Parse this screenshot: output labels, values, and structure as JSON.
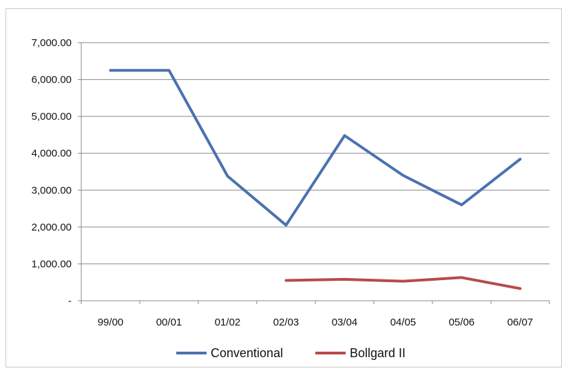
{
  "chart_data": {
    "type": "line",
    "categories": [
      "99/00",
      "00/01",
      "01/02",
      "02/03",
      "03/04",
      "04/05",
      "05/06",
      "06/07"
    ],
    "series": [
      {
        "name": "Conventional",
        "color": "#4a72b0",
        "values": [
          6250,
          6250,
          3380,
          2050,
          4480,
          3400,
          2600,
          3840
        ]
      },
      {
        "name": "Bollgard II",
        "color": "#b84a4a",
        "values": [
          null,
          null,
          null,
          550,
          580,
          530,
          630,
          330
        ]
      }
    ],
    "y_ticks": [
      {
        "value": 0,
        "label": "-"
      },
      {
        "value": 1000,
        "label": "1,000.00"
      },
      {
        "value": 2000,
        "label": "2,000.00"
      },
      {
        "value": 3000,
        "label": "3,000.00"
      },
      {
        "value": 4000,
        "label": "4,000.00"
      },
      {
        "value": 5000,
        "label": "5,000.00"
      },
      {
        "value": 6000,
        "label": "6,000.00"
      },
      {
        "value": 7000,
        "label": "7,000.00"
      }
    ],
    "ylim": [
      0,
      7000
    ],
    "grid": true,
    "legend_position": "bottom"
  }
}
